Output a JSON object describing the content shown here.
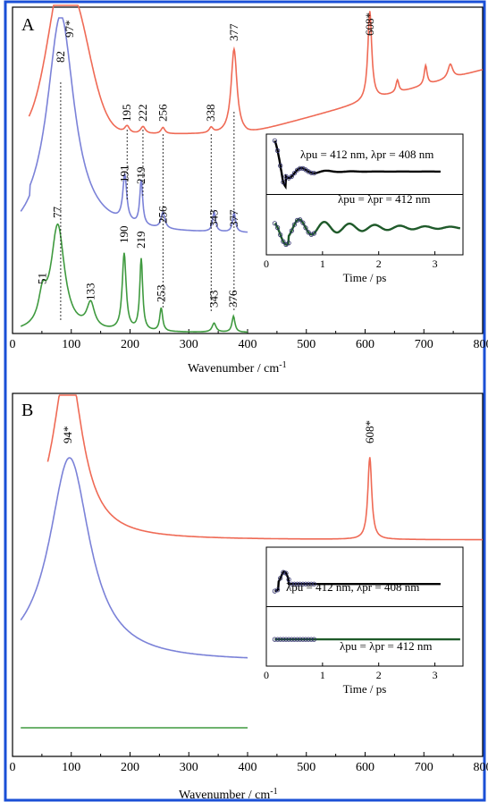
{
  "colors": {
    "frame": "#1a4fd6",
    "red": "#ef6a55",
    "blue": "#7b82d8",
    "green": "#3f9a3f",
    "black": "#000000",
    "navy": "#2f2f6a",
    "darkgreen": "#1f5a2a"
  },
  "chart_data": [
    {
      "panel": "A",
      "type": "line",
      "xlabel": "Wavenumber / cm",
      "xlabel_sup": "-1",
      "xlim": [
        0,
        800
      ],
      "xticks": [
        "0",
        "100",
        "200",
        "300",
        "400",
        "500",
        "600",
        "700",
        "800"
      ],
      "series": [
        {
          "color": "red",
          "x": [
            0,
            800
          ],
          "peaks": [
            {
              "pos": 97,
              "label": "97*"
            },
            {
              "pos": 195,
              "label": "195"
            },
            {
              "pos": 222,
              "label": "222"
            },
            {
              "pos": 256,
              "label": "256"
            },
            {
              "pos": 338,
              "label": "338"
            },
            {
              "pos": 377,
              "label": "377"
            },
            {
              "pos": 608,
              "label": "608*"
            }
          ]
        },
        {
          "color": "blue",
          "x": [
            0,
            400
          ],
          "peaks": [
            {
              "pos": 82,
              "label": "82"
            },
            {
              "pos": 191,
              "label": "191"
            },
            {
              "pos": 219,
              "label": "219"
            },
            {
              "pos": 256,
              "label": "256"
            },
            {
              "pos": 343,
              "label": "343"
            },
            {
              "pos": 377,
              "label": "377"
            }
          ]
        },
        {
          "color": "green",
          "x": [
            0,
            400
          ],
          "peaks": [
            {
              "pos": 51,
              "label": "51"
            },
            {
              "pos": 77,
              "label": "77"
            },
            {
              "pos": 133,
              "label": "133"
            },
            {
              "pos": 190,
              "label": "190"
            },
            {
              "pos": 219,
              "label": "219"
            },
            {
              "pos": 253,
              "label": "253"
            },
            {
              "pos": 343,
              "label": "343"
            },
            {
              "pos": 376,
              "label": "376"
            }
          ]
        }
      ],
      "inset": {
        "xlabel": "Time / ps",
        "xticks": [
          "0",
          "1",
          "2",
          "3"
        ],
        "xlim": [
          0,
          3.5
        ],
        "traces": [
          {
            "label": "λpu = 412 nm, λpr = 408 nm",
            "behavior": "damped oscillation"
          },
          {
            "label": "λpu = λpr = 412 nm",
            "behavior": "oscillation"
          }
        ]
      }
    },
    {
      "panel": "B",
      "type": "line",
      "xlabel": "Wavenumber / cm",
      "xlabel_sup": "-1",
      "xlim": [
        0,
        800
      ],
      "xticks": [
        "0",
        "100",
        "200",
        "300",
        "400",
        "500",
        "600",
        "700",
        "800"
      ],
      "series": [
        {
          "color": "red",
          "x": [
            0,
            800
          ],
          "peaks": [
            {
              "pos": 94,
              "label": "94*"
            },
            {
              "pos": 608,
              "label": "608*"
            }
          ]
        },
        {
          "color": "blue",
          "x": [
            0,
            400
          ],
          "peaks": [
            {
              "pos": 94,
              "label": ""
            }
          ]
        },
        {
          "color": "green",
          "x": [
            0,
            400
          ],
          "peaks": []
        }
      ],
      "inset": {
        "xlabel": "Time / ps",
        "xticks": [
          "0",
          "1",
          "2",
          "3"
        ],
        "xlim": [
          0,
          3.5
        ],
        "traces": [
          {
            "label": "λpu = 412 nm, λpr = 408 nm",
            "behavior": "rise then flat"
          },
          {
            "label": "λpu = λpr = 412 nm",
            "behavior": "flat"
          }
        ]
      }
    }
  ]
}
